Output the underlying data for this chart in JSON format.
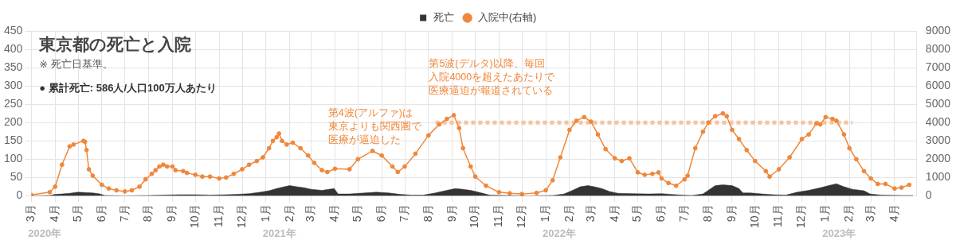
{
  "chart_data": {
    "type": "line",
    "title": "東京都の死亡と入院",
    "subtitle": "※ 死亡日基準。",
    "annotations": [
      "● 累計死亡: 586人/人口100万人あたり",
      "第4波(アルファ)は東京よりも関西圏で医療が逼迫した",
      "第5波(デルタ)以降、毎回入院4000を超えたあたりで医療逼迫が報道されている",
      "2020年",
      "2021年",
      "2022年",
      "2023年"
    ],
    "xlim": [
      "2020-03-01",
      "2023-04-30"
    ],
    "xticks": [
      {
        "value": "2020-03-01",
        "label": "3月"
      },
      {
        "value": "2020-04-01",
        "label": "4月"
      },
      {
        "value": "2020-05-01",
        "label": "5月"
      },
      {
        "value": "2020-06-01",
        "label": "6月"
      },
      {
        "value": "2020-07-01",
        "label": "7月"
      },
      {
        "value": "2020-08-01",
        "label": "8月"
      },
      {
        "value": "2020-09-01",
        "label": "9月"
      },
      {
        "value": "2020-10-01",
        "label": "10月"
      },
      {
        "value": "2020-11-01",
        "label": "11月"
      },
      {
        "value": "2020-12-01",
        "label": "12月"
      },
      {
        "value": "2021-01-01",
        "label": "1月"
      },
      {
        "value": "2021-02-01",
        "label": "2月"
      },
      {
        "value": "2021-03-01",
        "label": "3月"
      },
      {
        "value": "2021-04-01",
        "label": "4月"
      },
      {
        "value": "2021-05-01",
        "label": "5月"
      },
      {
        "value": "2021-06-01",
        "label": "6月"
      },
      {
        "value": "2021-07-01",
        "label": "7月"
      },
      {
        "value": "2021-08-01",
        "label": "8月"
      },
      {
        "value": "2021-09-01",
        "label": "9月"
      },
      {
        "value": "2021-10-01",
        "label": "10月"
      },
      {
        "value": "2021-11-01",
        "label": "11月"
      },
      {
        "value": "2021-12-01",
        "label": "12月"
      },
      {
        "value": "2022-01-01",
        "label": "1月"
      },
      {
        "value": "2022-02-01",
        "label": "2月"
      },
      {
        "value": "2022-03-01",
        "label": "3月"
      },
      {
        "value": "2022-04-01",
        "label": "4月"
      },
      {
        "value": "2022-05-01",
        "label": "5月"
      },
      {
        "value": "2022-06-01",
        "label": "6月"
      },
      {
        "value": "2022-07-01",
        "label": "7月"
      },
      {
        "value": "2022-08-01",
        "label": "8月"
      },
      {
        "value": "2022-09-01",
        "label": "9月"
      },
      {
        "value": "2022-10-01",
        "label": "10月"
      },
      {
        "value": "2022-11-01",
        "label": "11月"
      },
      {
        "value": "2022-12-01",
        "label": "12月"
      },
      {
        "value": "2023-01-01",
        "label": "1月"
      },
      {
        "value": "2023-02-01",
        "label": "2月"
      },
      {
        "value": "2023-03-01",
        "label": "3月"
      },
      {
        "value": "2023-04-01",
        "label": "4月"
      }
    ],
    "ylim": [
      0,
      450
    ],
    "yticks": [
      0,
      50,
      100,
      150,
      200,
      250,
      300,
      350,
      400,
      450
    ],
    "y2lim": [
      0,
      9000
    ],
    "y2ticks": [
      0,
      1000,
      2000,
      3000,
      4000,
      5000,
      6000,
      7000,
      8000,
      9000
    ],
    "grid": true,
    "legend": "top",
    "series": [
      {
        "name": "死亡",
        "type": "area",
        "color": "#333333",
        "marker": "none",
        "x": [
          "2020-03-01",
          "2020-03-25",
          "2020-04-01",
          "2020-04-10",
          "2020-04-20",
          "2020-05-01",
          "2020-05-10",
          "2020-05-20",
          "2020-05-28",
          "2020-06-05",
          "2020-07-01",
          "2020-08-01",
          "2020-08-20",
          "2020-09-10",
          "2020-10-01",
          "2020-10-20",
          "2020-11-10",
          "2020-11-25",
          "2020-12-10",
          "2020-12-25",
          "2021-01-05",
          "2021-01-15",
          "2021-01-25",
          "2021-02-01",
          "2021-02-10",
          "2021-02-20",
          "2021-03-01",
          "2021-03-15",
          "2021-03-31",
          "2021-04-05",
          "2021-04-20",
          "2021-05-10",
          "2021-05-25",
          "2021-06-10",
          "2021-06-25",
          "2021-07-10",
          "2021-07-25",
          "2021-08-10",
          "2021-08-25",
          "2021-09-05",
          "2021-09-15",
          "2021-09-25",
          "2021-10-05",
          "2021-10-20",
          "2021-11-10",
          "2021-12-10",
          "2022-01-10",
          "2022-01-25",
          "2022-02-05",
          "2022-02-15",
          "2022-02-25",
          "2022-03-05",
          "2022-03-15",
          "2022-03-25",
          "2022-04-05",
          "2022-04-25",
          "2022-05-15",
          "2022-06-01",
          "2022-06-20",
          "2022-07-10",
          "2022-07-25",
          "2022-08-01",
          "2022-08-10",
          "2022-08-20",
          "2022-09-01",
          "2022-09-10",
          "2022-09-15",
          "2022-09-25",
          "2022-10-10",
          "2022-10-25",
          "2022-11-10",
          "2022-11-25",
          "2022-12-10",
          "2022-12-25",
          "2023-01-05",
          "2023-01-15",
          "2023-01-25",
          "2023-02-05",
          "2023-02-20",
          "2023-02-28",
          "2023-03-15",
          "2023-04-10",
          "2023-04-25"
        ],
        "values": [
          0,
          1,
          4,
          5,
          7,
          10,
          9,
          8,
          6,
          1,
          0,
          1,
          2,
          3,
          3,
          2,
          3,
          4,
          6,
          10,
          14,
          20,
          25,
          28,
          25,
          22,
          18,
          15,
          20,
          5,
          5,
          8,
          10,
          8,
          4,
          2,
          2,
          8,
          15,
          20,
          18,
          15,
          10,
          2,
          1,
          0,
          1,
          5,
          15,
          25,
          28,
          25,
          20,
          12,
          7,
          6,
          5,
          6,
          3,
          1,
          5,
          15,
          28,
          30,
          28,
          20,
          8,
          8,
          5,
          3,
          2,
          10,
          15,
          22,
          28,
          33,
          25,
          18,
          14,
          5,
          2,
          1,
          1
        ]
      },
      {
        "name": "入院中(右軸)",
        "type": "line",
        "axis": "y2",
        "color": "#f0873a",
        "marker": "circle",
        "x": [
          "2020-03-01",
          "2020-03-25",
          "2020-04-01",
          "2020-04-10",
          "2020-04-20",
          "2020-04-25",
          "2020-05-08",
          "2020-05-10",
          "2020-05-12",
          "2020-05-15",
          "2020-05-20",
          "2020-06-01",
          "2020-06-10",
          "2020-06-20",
          "2020-07-01",
          "2020-07-10",
          "2020-07-20",
          "2020-07-28",
          "2020-08-05",
          "2020-08-10",
          "2020-08-15",
          "2020-08-20",
          "2020-08-25",
          "2020-09-01",
          "2020-09-05",
          "2020-09-15",
          "2020-09-20",
          "2020-10-01",
          "2020-10-10",
          "2020-10-20",
          "2020-11-01",
          "2020-11-10",
          "2020-11-20",
          "2020-12-01",
          "2020-12-10",
          "2020-12-20",
          "2020-12-28",
          "2021-01-05",
          "2021-01-10",
          "2021-01-15",
          "2021-01-18",
          "2021-01-22",
          "2021-01-28",
          "2021-02-05",
          "2021-02-15",
          "2021-02-25",
          "2021-03-05",
          "2021-03-15",
          "2021-03-22",
          "2021-04-01",
          "2021-04-20",
          "2021-05-01",
          "2021-05-20",
          "2021-06-01",
          "2021-06-15",
          "2021-06-22",
          "2021-07-01",
          "2021-07-15",
          "2021-08-01",
          "2021-08-15",
          "2021-08-25",
          "2021-09-03",
          "2021-09-10",
          "2021-09-15",
          "2021-09-25",
          "2021-10-01",
          "2021-10-15",
          "2021-11-01",
          "2021-11-15",
          "2021-12-01",
          "2021-12-20",
          "2022-01-01",
          "2022-01-10",
          "2022-01-20",
          "2022-02-01",
          "2022-02-10",
          "2022-02-20",
          "2022-03-01",
          "2022-03-10",
          "2022-03-20",
          "2022-04-01",
          "2022-04-10",
          "2022-04-20",
          "2022-05-01",
          "2022-05-10",
          "2022-05-20",
          "2022-05-28",
          "2022-06-01",
          "2022-06-10",
          "2022-06-20",
          "2022-07-01",
          "2022-07-05",
          "2022-07-15",
          "2022-07-25",
          "2022-08-01",
          "2022-08-10",
          "2022-08-20",
          "2022-08-25",
          "2022-09-01",
          "2022-09-10",
          "2022-09-20",
          "2022-10-01",
          "2022-10-15",
          "2022-10-20",
          "2022-11-01",
          "2022-11-15",
          "2022-12-01",
          "2022-12-10",
          "2022-12-20",
          "2022-12-25",
          "2023-01-01",
          "2023-01-10",
          "2023-01-15",
          "2023-01-25",
          "2023-02-01",
          "2023-02-10",
          "2023-02-20",
          "2023-03-01",
          "2023-03-10",
          "2023-03-20",
          "2023-04-01",
          "2023-04-10",
          "2023-04-20"
        ],
        "values": [
          50,
          200,
          500,
          1700,
          2700,
          2800,
          3000,
          2950,
          2500,
          1450,
          1100,
          600,
          400,
          300,
          240,
          300,
          500,
          900,
          1200,
          1400,
          1600,
          1700,
          1600,
          1600,
          1400,
          1350,
          1250,
          1150,
          1050,
          1050,
          950,
          1000,
          1200,
          1450,
          1700,
          1900,
          2100,
          2600,
          3000,
          3200,
          3400,
          3000,
          2800,
          2900,
          2600,
          2200,
          1800,
          1400,
          1300,
          1480,
          1450,
          2000,
          2450,
          2200,
          1600,
          1300,
          1600,
          2300,
          3300,
          3900,
          4200,
          4400,
          3700,
          2600,
          1600,
          1050,
          550,
          200,
          140,
          100,
          160,
          300,
          850,
          2100,
          3600,
          4100,
          4300,
          4050,
          3350,
          2550,
          2050,
          1900,
          2050,
          1280,
          1150,
          1200,
          1280,
          950,
          700,
          550,
          900,
          1100,
          2600,
          3500,
          4000,
          4350,
          4500,
          4350,
          3600,
          3100,
          2500,
          1900,
          1350,
          1050,
          1450,
          2100,
          3100,
          3350,
          3950,
          3900,
          4300,
          4200,
          4100,
          3350,
          2600,
          2000,
          1350,
          950,
          650,
          650,
          400,
          450,
          600
        ]
      },
      {
        "type": "line",
        "axis": "y2",
        "color": "#f6c39e",
        "marker": "none",
        "line_style": "dotted",
        "x": [
          "2021-08-10",
          "2023-02-05"
        ],
        "values": [
          4000,
          4000
        ]
      }
    ]
  }
}
